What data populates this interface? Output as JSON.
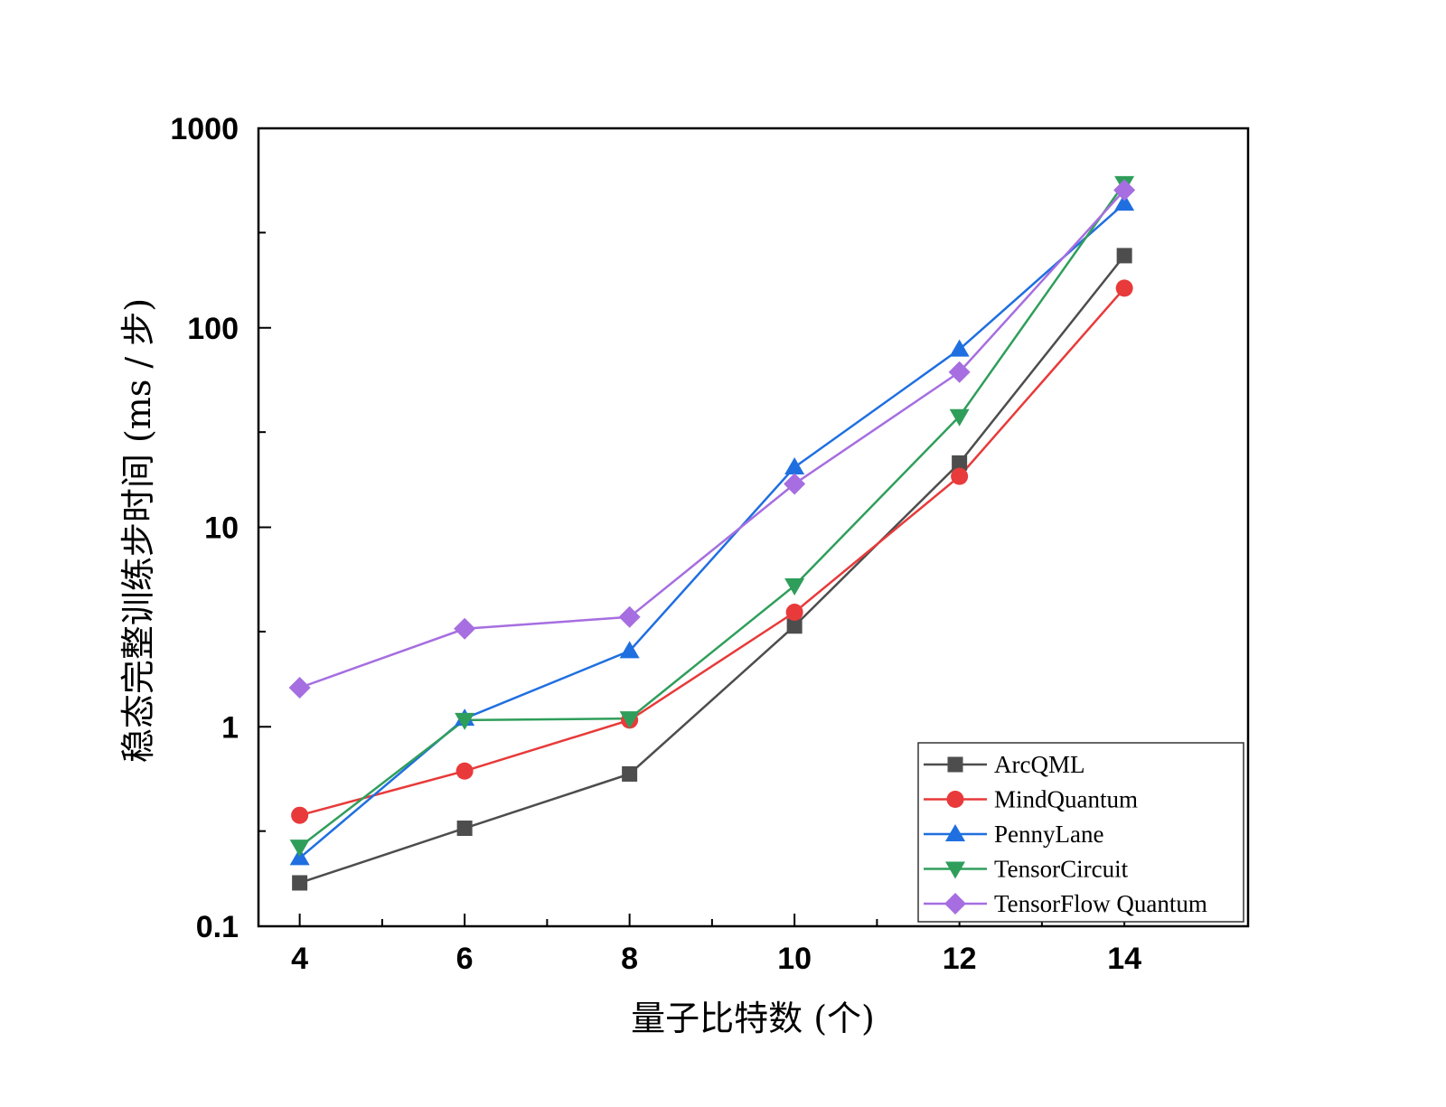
{
  "chart_data": {
    "type": "line",
    "xlabel": "量子比特数 (个)",
    "ylabel": "稳态完整训练步时间 (ms / 步)",
    "y_scale": "log",
    "xlim": [
      3.5,
      15.5
    ],
    "ylim": [
      0.1,
      1000
    ],
    "x": [
      4,
      6,
      8,
      10,
      12,
      14
    ],
    "x_ticks": [
      "4",
      "6",
      "8",
      "10",
      "12",
      "14"
    ],
    "y_ticks": [
      "0.1",
      "1",
      "10",
      "100",
      "1000"
    ],
    "legend_position": "bottom-right",
    "grid": false,
    "series": [
      {
        "name": "ArcQML",
        "color": "#4d4d4d",
        "marker": "square",
        "values": [
          0.165,
          0.31,
          0.58,
          3.2,
          21,
          230
        ]
      },
      {
        "name": "MindQuantum",
        "color": "#e83a3a",
        "marker": "circle",
        "values": [
          0.36,
          0.6,
          1.08,
          3.75,
          18,
          158
        ]
      },
      {
        "name": "PennyLane",
        "color": "#1f6fe0",
        "marker": "triangle-up",
        "values": [
          0.22,
          1.1,
          2.4,
          20,
          78,
          420
        ]
      },
      {
        "name": "TensorCircuit",
        "color": "#2f9e5b",
        "marker": "triangle-down",
        "values": [
          0.25,
          1.08,
          1.1,
          5.1,
          36,
          530
        ]
      },
      {
        "name": "TensorFlow Quantum",
        "color": "#a66ee0",
        "marker": "diamond",
        "values": [
          1.57,
          3.1,
          3.55,
          16.5,
          60,
          490
        ]
      }
    ]
  }
}
